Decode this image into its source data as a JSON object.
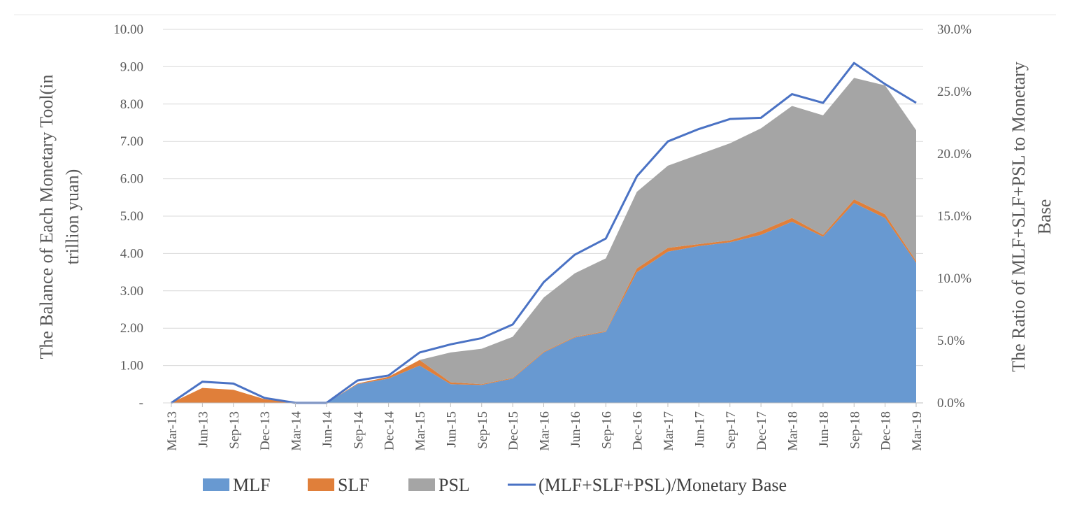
{
  "colors": {
    "MLF": "#6899d1",
    "SLF": "#e07f3a",
    "PSL": "#a5a5a5",
    "ratio": "#4a72c4"
  },
  "chart_data": {
    "type": "area",
    "categories": [
      "Mar-13",
      "Jun-13",
      "Sep-13",
      "Dec-13",
      "Mar-14",
      "Jun-14",
      "Sep-14",
      "Dec-14",
      "Mar-15",
      "Jun-15",
      "Sep-15",
      "Dec-15",
      "Mar-16",
      "Jun-16",
      "Sep-16",
      "Dec-16",
      "Mar-17",
      "Jun-17",
      "Sep-17",
      "Dec-17",
      "Mar-18",
      "Jun-18",
      "Sep-18",
      "Dec-18",
      "Mar-19"
    ],
    "series": [
      {
        "name": "MLF",
        "kind": "stacked-area",
        "axis": "left",
        "values": [
          0,
          0,
          0,
          0,
          0,
          0,
          0.5,
          0.65,
          1.0,
          0.5,
          0.48,
          0.65,
          1.35,
          1.75,
          1.9,
          3.5,
          4.05,
          4.2,
          4.3,
          4.5,
          4.85,
          4.45,
          5.35,
          4.95,
          3.75
        ]
      },
      {
        "name": "SLF",
        "kind": "stacked-area",
        "axis": "left",
        "values": [
          0,
          0.4,
          0.35,
          0.1,
          0,
          0,
          0.02,
          0.05,
          0.15,
          0.05,
          0.02,
          0.02,
          0.02,
          0.02,
          0.02,
          0.1,
          0.1,
          0.05,
          0.05,
          0.1,
          0.1,
          0.05,
          0.1,
          0.1,
          0.05
        ]
      },
      {
        "name": "PSL",
        "kind": "stacked-area",
        "axis": "left",
        "values": [
          0,
          0,
          0,
          0,
          0,
          0,
          0,
          0,
          0,
          0.8,
          0.95,
          1.1,
          1.45,
          1.7,
          1.95,
          2.05,
          2.2,
          2.4,
          2.6,
          2.75,
          3.0,
          3.2,
          3.25,
          3.45,
          3.5
        ]
      },
      {
        "name": "(MLF+SLF+PSL)/Monetary Base",
        "kind": "line",
        "axis": "right",
        "values": [
          0,
          1.7,
          1.55,
          0.4,
          0,
          0,
          1.8,
          2.2,
          4.05,
          4.7,
          5.2,
          6.3,
          9.7,
          11.9,
          13.2,
          18.2,
          21.0,
          22.0,
          22.8,
          22.9,
          24.8,
          24.1,
          27.3,
          25.6,
          24.1
        ]
      }
    ],
    "left_axis": {
      "label_line1": "The Balance of Each Monetary Tool(in",
      "label_line2": "trillion yuan)",
      "ylim": [
        0,
        10
      ],
      "ticks": [
        0,
        1,
        2,
        3,
        4,
        5,
        6,
        7,
        8,
        9,
        10
      ],
      "tick_labels": [
        "-",
        "1.00",
        "2.00",
        "3.00",
        "4.00",
        "5.00",
        "6.00",
        "7.00",
        "8.00",
        "9.00",
        "10.00"
      ]
    },
    "right_axis": {
      "label_line1": "The Ratio of MLF+SLF+PSL to Monetary",
      "label_line2": "Base",
      "ylim": [
        0,
        30
      ],
      "ticks": [
        0,
        5,
        10,
        15,
        20,
        25,
        30
      ],
      "tick_labels": [
        "0.0%",
        "5.0%",
        "10.0%",
        "15.0%",
        "20.0%",
        "25.0%",
        "30.0%"
      ]
    },
    "legend": {
      "position": "bottom",
      "items": [
        "MLF",
        "SLF",
        "PSL",
        "(MLF+SLF+PSL)/Monetary Base"
      ]
    },
    "grid": true
  }
}
